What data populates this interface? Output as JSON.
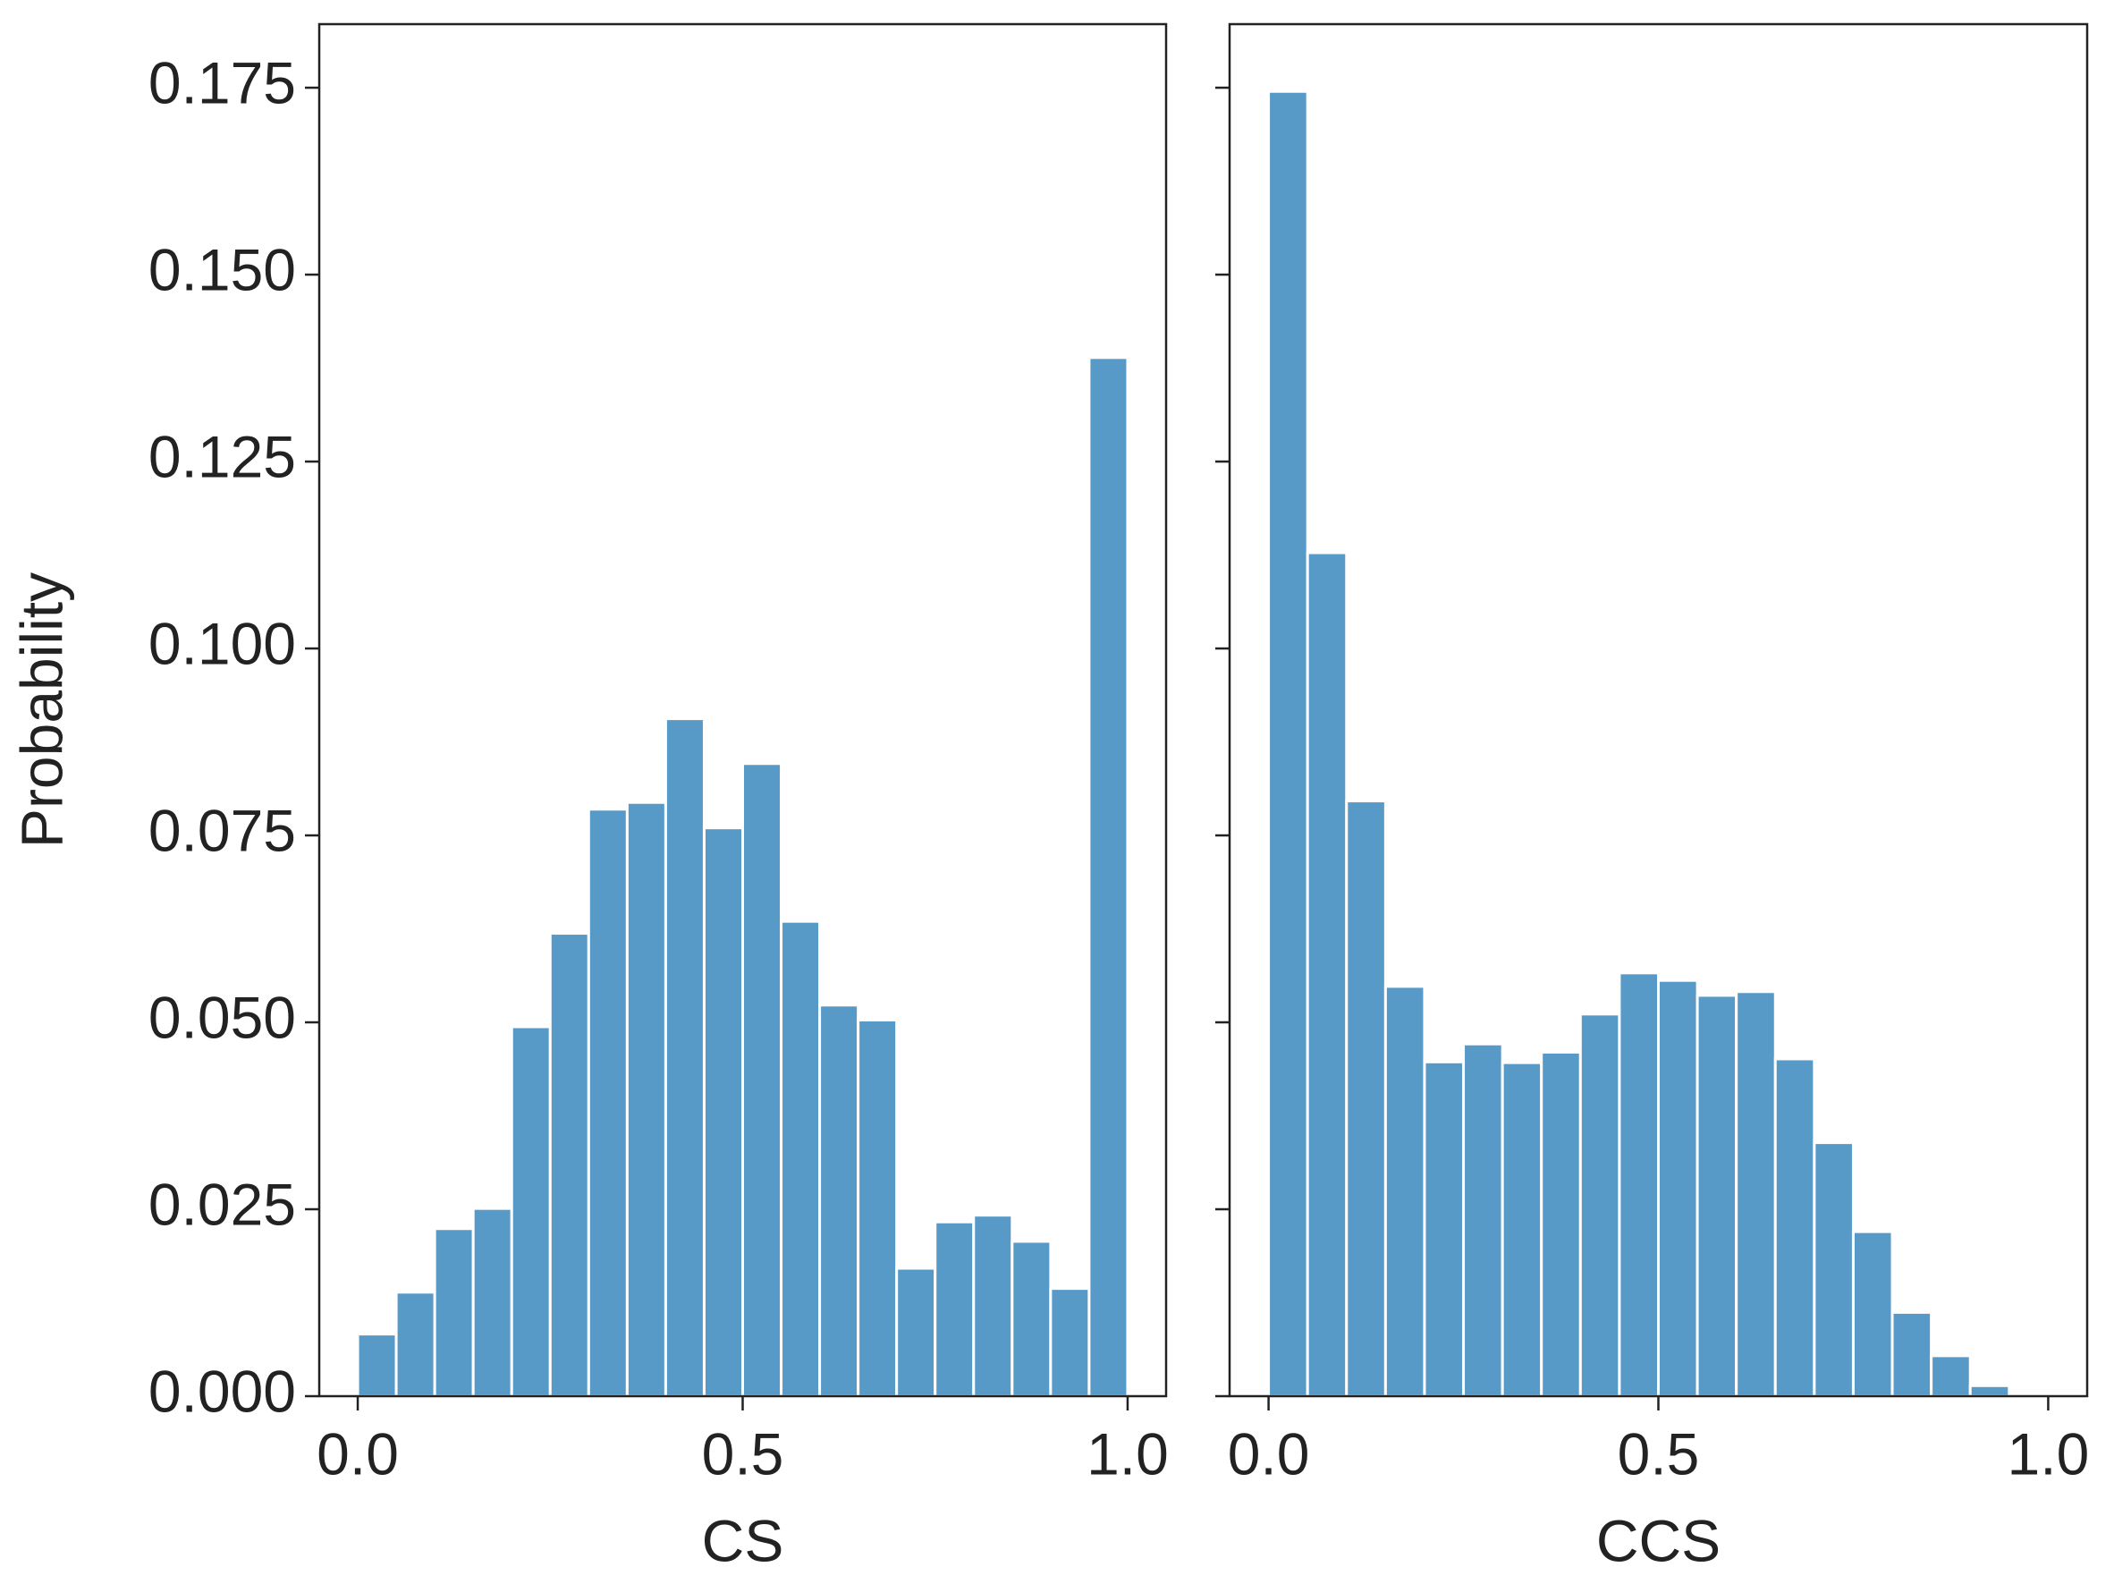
{
  "chart_data": [
    {
      "type": "histogram",
      "xlabel": "CS",
      "ylabel": "Probability",
      "color": "#5799c7",
      "show_ytick_labels": true,
      "bins": [
        0,
        0.05,
        0.1,
        0.15,
        0.2,
        0.25,
        0.3,
        0.35,
        0.4,
        0.45,
        0.5,
        0.55,
        0.6,
        0.65,
        0.7,
        0.75,
        0.8,
        0.85,
        0.9,
        0.95,
        1
      ],
      "values": [
        0.0083,
        0.0139,
        0.0224,
        0.0251,
        0.0494,
        0.0619,
        0.0785,
        0.0794,
        0.0906,
        0.076,
        0.0846,
        0.0635,
        0.0523,
        0.0503,
        0.0171,
        0.0233,
        0.0242,
        0.0207,
        0.0144,
        0.1389
      ],
      "xlim": [
        -0.05,
        1.05
      ],
      "ylim": [
        0,
        0.1835
      ],
      "xticks": [
        {
          "value": 0,
          "label": "0.0"
        },
        {
          "value": 0.5,
          "label": "0.5"
        },
        {
          "value": 1,
          "label": "1.0"
        }
      ],
      "yticks": [
        {
          "value": 0,
          "label": "0.000"
        },
        {
          "value": 0.025,
          "label": "0.025"
        },
        {
          "value": 0.05,
          "label": "0.050"
        },
        {
          "value": 0.075,
          "label": "0.075"
        },
        {
          "value": 0.1,
          "label": "0.100"
        },
        {
          "value": 0.125,
          "label": "0.125"
        },
        {
          "value": 0.15,
          "label": "0.150"
        },
        {
          "value": 0.175,
          "label": "0.175"
        }
      ]
    },
    {
      "type": "histogram",
      "xlabel": "CCS",
      "color": "#5799c7",
      "show_ytick_labels": false,
      "bins": [
        0,
        0.05,
        0.1,
        0.15,
        0.2,
        0.25,
        0.3,
        0.35,
        0.4,
        0.45,
        0.5,
        0.55,
        0.6,
        0.65,
        0.7,
        0.75,
        0.8,
        0.85,
        0.9,
        0.95,
        1
      ],
      "values": [
        0.1745,
        0.1128,
        0.0796,
        0.0548,
        0.0447,
        0.0471,
        0.0446,
        0.046,
        0.0511,
        0.0566,
        0.0556,
        0.0536,
        0.0541,
        0.0451,
        0.0339,
        0.022,
        0.0112,
        0.0054,
        0.0014,
        0
      ],
      "xlim": [
        -0.05,
        1.05
      ],
      "ylim": [
        0,
        0.1835
      ],
      "xticks": [
        {
          "value": 0,
          "label": "0.0"
        },
        {
          "value": 0.5,
          "label": "0.5"
        },
        {
          "value": 1,
          "label": "1.0"
        }
      ],
      "yticks": [
        0,
        0.025,
        0.05,
        0.075,
        0.1,
        0.125,
        0.15,
        0.175
      ]
    }
  ]
}
